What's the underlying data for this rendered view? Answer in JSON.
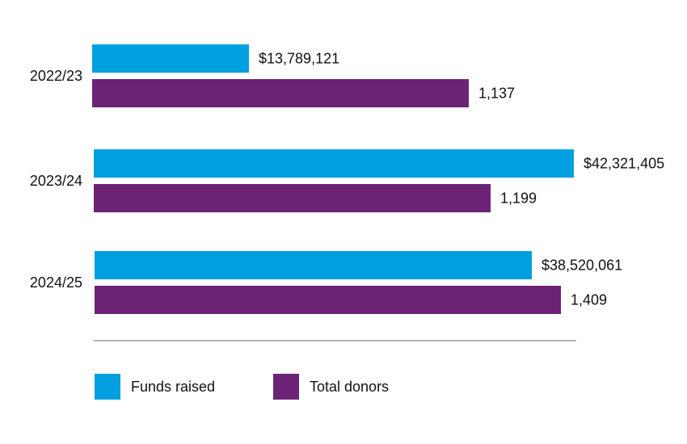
{
  "chart_data": {
    "type": "bar",
    "orientation": "horizontal",
    "title": "",
    "xlabel": "",
    "ylabel": "",
    "grid": false,
    "legend_position": "bottom-left",
    "categories": [
      "2022/23",
      "2023/24",
      "2024/25"
    ],
    "series": [
      {
        "name": "Funds raised",
        "color": "#009FE0",
        "values": [
          13789121,
          42321405,
          38520061
        ],
        "labels": [
          "$13,789,121",
          "$42,321,405",
          "$38,520,061"
        ],
        "axis_max": 42321405
      },
      {
        "name": "Total donors",
        "color": "#6C2375",
        "values": [
          1137,
          1199,
          1409
        ],
        "labels": [
          "1,137",
          "1,199",
          "1,409"
        ],
        "axis_max": 1450
      }
    ]
  }
}
